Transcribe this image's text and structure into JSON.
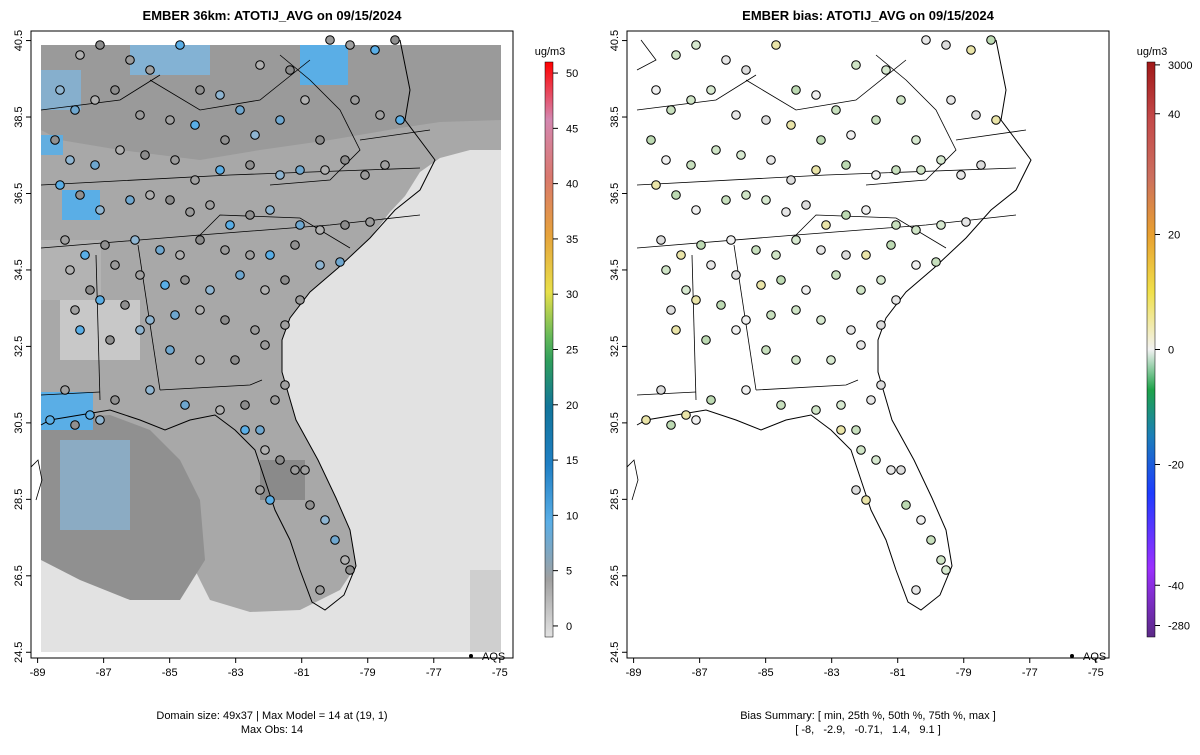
{
  "colors": {
    "land": "#a8a8a8",
    "ocean": "#e2e2e2",
    "hi_blue": "#5aaee6",
    "border": "#000000"
  },
  "chart_data": [
    {
      "type": "map",
      "title": "EMBER 36km: ATOTIJ_AVG on 09/15/2024",
      "xlim": [
        -89.2,
        -74.6
      ],
      "ylim": [
        24.35,
        40.75
      ],
      "x_ticks": [
        -89,
        -87,
        -85,
        -83,
        -81,
        -79,
        -77,
        -75
      ],
      "x_tick_labels": [
        "-89",
        "-87",
        "-85",
        "-83",
        "-81",
        "-79",
        "-77",
        "-75"
      ],
      "y_ticks": [
        24.5,
        26.5,
        28.5,
        30.5,
        32.5,
        34.5,
        36.5,
        38.5,
        40.5
      ],
      "y_tick_labels": [
        "24.5",
        "26.5",
        "28.5",
        "30.5",
        "32.5",
        "34.5",
        "36.5",
        "38.5",
        "40.5"
      ],
      "legend_marker": "AQS",
      "footer_lines": [
        "Domain size: 49x37 | Max Model = 14 at (19, 1)",
        "Max Obs: 14"
      ],
      "colorbar": {
        "unit": "ug/m3",
        "range": [
          -1,
          51
        ],
        "tick_values": [
          0,
          5,
          10,
          15,
          20,
          25,
          30,
          35,
          40,
          45,
          50
        ],
        "tick_labels": [
          "0",
          "5",
          "10",
          "15",
          "20",
          "25",
          "30",
          "35",
          "40",
          "45",
          "50"
        ]
      },
      "domain_size": "49x37",
      "max_model": 14,
      "max_model_cell": [
        19,
        1
      ],
      "max_obs": 14
    },
    {
      "type": "map",
      "title": "EMBER bias: ATOTIJ_AVG on 09/15/2024",
      "xlim": [
        -89.2,
        -74.6
      ],
      "ylim": [
        24.35,
        40.75
      ],
      "x_ticks": [
        -89,
        -87,
        -85,
        -83,
        -81,
        -79,
        -77,
        -75
      ],
      "x_tick_labels": [
        "-89",
        "-87",
        "-85",
        "-83",
        "-81",
        "-79",
        "-77",
        "-75"
      ],
      "y_ticks": [
        24.5,
        26.5,
        28.5,
        30.5,
        32.5,
        34.5,
        36.5,
        38.5,
        40.5
      ],
      "y_tick_labels": [
        "24.5",
        "26.5",
        "28.5",
        "30.5",
        "32.5",
        "34.5",
        "36.5",
        "38.5",
        "40.5"
      ],
      "legend_marker": "AQS",
      "footer_lines": [
        "Bias Summary: [ min, 25th %, 50th %, 75th %, max ]",
        "[ -8,   -2.9,   -0.71,   1.4,   9.1 ]"
      ],
      "colorbar": {
        "unit": "ug/m3",
        "tick_values": [
          -280,
          -40,
          -20,
          0,
          20,
          40,
          3000
        ],
        "tick_labels": [
          "-280",
          "-40",
          "-20",
          "0",
          "20",
          "40",
          "3000"
        ]
      },
      "bias_summary": {
        "min": -8,
        "p25": -2.9,
        "p50": -0.71,
        "p75": 1.4,
        "max": 9.1
      }
    }
  ]
}
